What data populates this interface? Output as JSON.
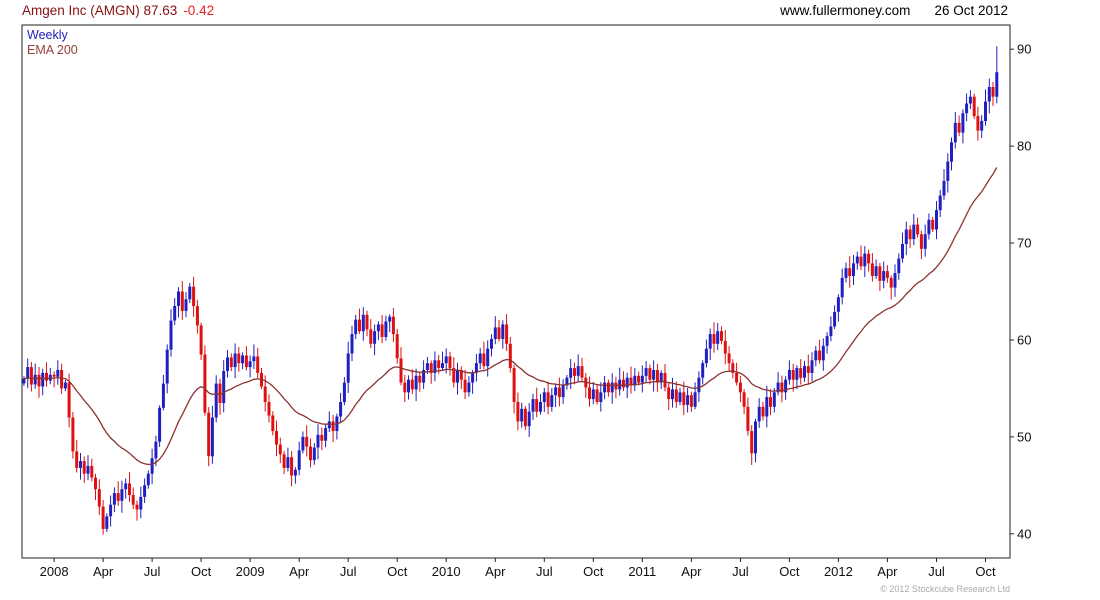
{
  "header": {
    "title": "Amgen Inc (AMGN) 87.63",
    "change": "-0.42",
    "website": "www.fullermoney.com",
    "date": "26 Oct 2012"
  },
  "legend": {
    "timeframe": "Weekly",
    "ema_label": "EMA 200"
  },
  "footer": {
    "copyright": "© 2012 Stockcube Research Ltd"
  },
  "colors": {
    "up": "#2020c0",
    "down": "#dd1111",
    "ema": "#8b3232",
    "title": "#881111",
    "change": "#ee2222",
    "timeframe_label": "#2222bb",
    "ema_label_color": "#994040",
    "axis": "#222222",
    "tick_text": "#111111",
    "copyright": "#aaaaaa"
  },
  "chart_data": {
    "type": "candlestick",
    "title": "Amgen Inc (AMGN) 87.63 -0.42",
    "symbol": "AMGN",
    "name": "Amgen Inc",
    "timeframe": "Weekly",
    "last_price": 87.63,
    "change": -0.42,
    "as_of": "26 Oct 2012",
    "overlay": {
      "name": "EMA 200",
      "period_weeks": 30
    },
    "grid": false,
    "legend_position": "top-left-inside",
    "y_axis_side": "right",
    "y_ticks": [
      40,
      50,
      60,
      70,
      80,
      90
    ],
    "ylim": [
      37.5,
      92.5
    ],
    "slots": 262,
    "x_ticks": [
      {
        "label": "2008",
        "index": 8
      },
      {
        "label": "Apr",
        "index": 21
      },
      {
        "label": "Jul",
        "index": 34
      },
      {
        "label": "Oct",
        "index": 47
      },
      {
        "label": "2009",
        "index": 60
      },
      {
        "label": "Apr",
        "index": 73
      },
      {
        "label": "Jul",
        "index": 86
      },
      {
        "label": "Oct",
        "index": 99
      },
      {
        "label": "2010",
        "index": 112
      },
      {
        "label": "Apr",
        "index": 125
      },
      {
        "label": "Jul",
        "index": 138
      },
      {
        "label": "Oct",
        "index": 151
      },
      {
        "label": "2011",
        "index": 164
      },
      {
        "label": "Apr",
        "index": 177
      },
      {
        "label": "Jul",
        "index": 190
      },
      {
        "label": "Oct",
        "index": 203
      },
      {
        "label": "2012",
        "index": 216
      },
      {
        "label": "Apr",
        "index": 229
      },
      {
        "label": "Jul",
        "index": 242
      },
      {
        "label": "Oct",
        "index": 255
      }
    ],
    "last_high": 90.3,
    "weekly_closes": [
      56.0,
      57.2,
      55.4,
      56.4,
      55.2,
      56.6,
      55.8,
      56.4,
      56.2,
      56.9,
      55.0,
      55.6,
      52.0,
      48.5,
      46.8,
      47.5,
      46.2,
      47.0,
      45.8,
      44.6,
      42.8,
      40.5,
      41.8,
      43.0,
      44.2,
      43.4,
      44.6,
      45.2,
      44.0,
      43.0,
      42.5,
      43.8,
      45.0,
      46.2,
      47.8,
      49.5,
      53.0,
      55.5,
      59.0,
      62.0,
      63.5,
      65.0,
      63.0,
      64.2,
      65.5,
      63.5,
      61.5,
      58.5,
      52.5,
      48.0,
      52.0,
      55.5,
      53.5,
      56.8,
      58.2,
      57.2,
      58.6,
      57.6,
      58.4,
      57.2,
      57.8,
      58.3,
      56.6,
      55.2,
      53.6,
      52.2,
      50.6,
      49.2,
      48.2,
      46.8,
      47.9,
      46.0,
      46.6,
      48.6,
      50.0,
      49.0,
      47.6,
      48.9,
      50.2,
      49.6,
      50.9,
      51.6,
      50.6,
      52.1,
      53.6,
      55.6,
      58.6,
      60.6,
      62.1,
      60.9,
      62.6,
      61.1,
      59.6,
      60.9,
      61.6,
      60.3,
      61.9,
      62.4,
      60.6,
      58.1,
      55.6,
      54.6,
      55.9,
      54.9,
      56.3,
      55.6,
      56.9,
      57.6,
      56.6,
      57.9,
      57.1,
      57.6,
      58.3,
      57.1,
      55.6,
      56.9,
      55.9,
      54.6,
      55.6,
      56.6,
      57.6,
      58.6,
      57.3,
      59.1,
      60.1,
      61.3,
      60.1,
      61.6,
      59.6,
      57.1,
      53.6,
      51.6,
      52.9,
      51.1,
      52.6,
      53.9,
      52.6,
      53.6,
      54.6,
      53.1,
      54.3,
      55.1,
      54.1,
      55.3,
      56.1,
      57.1,
      56.3,
      57.3,
      56.1,
      55.1,
      53.9,
      54.9,
      53.6,
      54.6,
      55.6,
      54.6,
      55.6,
      54.9,
      55.9,
      55.1,
      56.1,
      55.3,
      56.3,
      55.6,
      56.3,
      57.1,
      55.9,
      56.9,
      55.6,
      56.6,
      55.1,
      53.9,
      54.9,
      53.6,
      54.6,
      53.3,
      54.3,
      53.1,
      54.6,
      56.1,
      57.6,
      59.1,
      60.6,
      59.6,
      60.9,
      59.9,
      58.6,
      57.6,
      56.6,
      55.6,
      54.6,
      53.1,
      50.6,
      48.3,
      51.6,
      53.1,
      52.1,
      54.1,
      53.1,
      54.6,
      55.6,
      54.6,
      55.9,
      56.9,
      55.9,
      57.1,
      56.1,
      57.3,
      56.6,
      57.9,
      58.9,
      57.9,
      59.4,
      60.4,
      61.4,
      62.9,
      64.4,
      66.4,
      67.4,
      66.6,
      67.9,
      68.6,
      67.6,
      68.9,
      67.9,
      66.6,
      67.6,
      66.1,
      67.1,
      66.4,
      65.4,
      66.9,
      68.4,
      69.9,
      71.4,
      70.4,
      71.9,
      70.9,
      69.4,
      70.9,
      72.4,
      71.4,
      73.4,
      74.9,
      76.4,
      78.4,
      80.4,
      82.4,
      81.4,
      83.4,
      84.4,
      85.1,
      83.1,
      81.6,
      82.6,
      84.6,
      86.1,
      85.1,
      87.63
    ]
  }
}
